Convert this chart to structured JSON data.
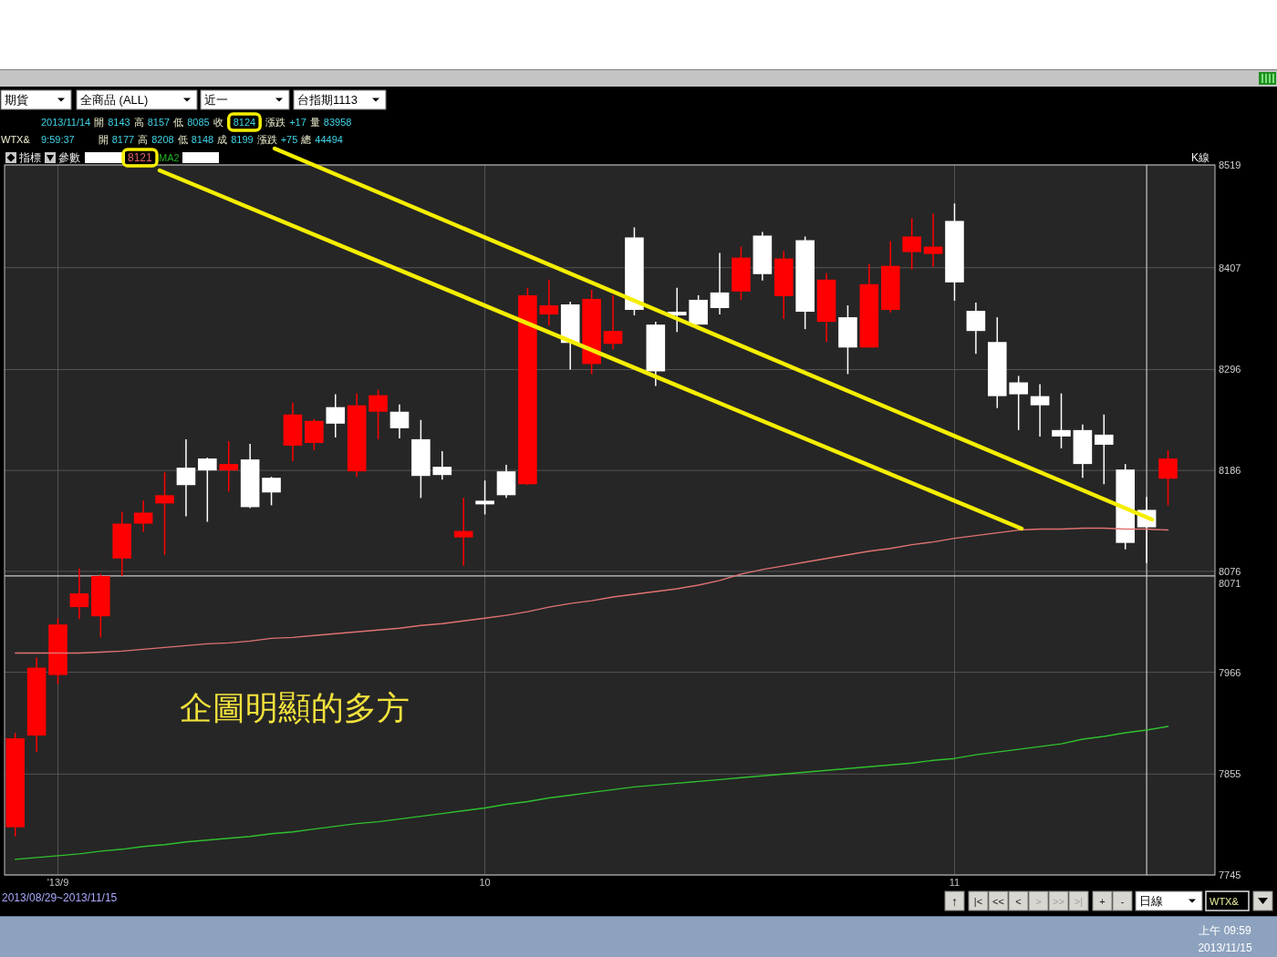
{
  "chart_data": {
    "type": "candlestick",
    "categories": [
      null,
      null,
      "'13/9",
      null,
      null,
      null,
      null,
      null,
      null,
      null,
      null,
      null,
      null,
      null,
      null,
      null,
      null,
      null,
      null,
      null,
      null,
      null,
      "10",
      null,
      null,
      null,
      null,
      null,
      null,
      null,
      null,
      null,
      null,
      null,
      null,
      null,
      null,
      null,
      null,
      null,
      null,
      null,
      null,
      null,
      "11",
      null,
      null,
      null,
      null,
      null,
      null,
      null,
      null,
      null,
      null
    ],
    "ohlc": [
      [
        7797,
        7900,
        7787,
        7894
      ],
      [
        7897,
        7982,
        7879,
        7971
      ],
      [
        7963,
        8025,
        7953,
        8018
      ],
      [
        8037,
        8079,
        8024,
        8052
      ],
      [
        8027,
        8073,
        8004,
        8071
      ],
      [
        8090,
        8141,
        8071,
        8128
      ],
      [
        8128,
        8153,
        8119,
        8140
      ],
      [
        8150,
        8184,
        8094,
        8159
      ],
      [
        8189,
        8220,
        8136,
        8170
      ],
      [
        8199,
        8200,
        8130,
        8186
      ],
      [
        8186,
        8218,
        8163,
        8193
      ],
      [
        8198,
        8215,
        8145,
        8146
      ],
      [
        8178,
        8179,
        8148,
        8162
      ],
      [
        8213,
        8260,
        8196,
        8247
      ],
      [
        8216,
        8242,
        8208,
        8240
      ],
      [
        8255,
        8269,
        8222,
        8237
      ],
      [
        8185,
        8270,
        8179,
        8257
      ],
      [
        8250,
        8274,
        8220,
        8268
      ],
      [
        8250,
        8258,
        8221,
        8232
      ],
      [
        8220,
        8241,
        8156,
        8180
      ],
      [
        8190,
        8207,
        8176,
        8181
      ],
      [
        8113,
        8156,
        8082,
        8120
      ],
      [
        8153,
        8175,
        8138,
        8149
      ],
      [
        8185,
        8192,
        8156,
        8159
      ],
      [
        8171,
        8385,
        8170,
        8377
      ],
      [
        8356,
        8394,
        8344,
        8366
      ],
      [
        8367,
        8370,
        8296,
        8325
      ],
      [
        8302,
        8383,
        8291,
        8373
      ],
      [
        8324,
        8377,
        8318,
        8338
      ],
      [
        8440,
        8451,
        8355,
        8361
      ],
      [
        8345,
        8348,
        8278,
        8294
      ],
      [
        8359,
        8385,
        8337,
        8355
      ],
      [
        8372,
        8377,
        8345,
        8345
      ],
      [
        8380,
        8423,
        8356,
        8363
      ],
      [
        8381,
        8430,
        8372,
        8418
      ],
      [
        8442,
        8446,
        8393,
        8400
      ],
      [
        8376,
        8425,
        8351,
        8417
      ],
      [
        8437,
        8441,
        8340,
        8359
      ],
      [
        8348,
        8401,
        8326,
        8394
      ],
      [
        8353,
        8366,
        8291,
        8320
      ],
      [
        8320,
        8411,
        8320,
        8389
      ],
      [
        8361,
        8436,
        8358,
        8409
      ],
      [
        8424,
        8461,
        8405,
        8441
      ],
      [
        8422,
        8466,
        8408,
        8430
      ],
      [
        8458,
        8477,
        8371,
        8391
      ],
      [
        8360,
        8369,
        8313,
        8338
      ],
      [
        8326,
        8353,
        8254,
        8267
      ],
      [
        8282,
        8289,
        8230,
        8269
      ],
      [
        8267,
        8280,
        8223,
        8257
      ],
      [
        8230,
        8270,
        8210,
        8223
      ],
      [
        8230,
        8236,
        8178,
        8193
      ],
      [
        8225,
        8247,
        8171,
        8214
      ],
      [
        8187,
        8193,
        8100,
        8107
      ],
      [
        8143,
        8157,
        8085,
        8124
      ],
      [
        8177,
        8208,
        8148,
        8199
      ]
    ],
    "colors": [
      "#ff0000",
      "#ff0000",
      "#ff0000",
      "#ff0000",
      "#ff0000",
      "#ff0000",
      "#ff0000",
      "#ff0000",
      "#ffffff",
      "#ffffff",
      "#ff0000",
      "#ffffff",
      "#ffffff",
      "#ff0000",
      "#ff0000",
      "#ffffff",
      "#ff0000",
      "#ff0000",
      "#ffffff",
      "#ffffff",
      "#ffffff",
      "#ff0000",
      "#ffffff",
      "#ffffff",
      "#ff0000",
      "#ff0000",
      "#ffffff",
      "#ff0000",
      "#ff0000",
      "#ffffff",
      "#ffffff",
      "#ffffff",
      "#ffffff",
      "#ffffff",
      "#ff0000",
      "#ffffff",
      "#ff0000",
      "#ffffff",
      "#ff0000",
      "#ffffff",
      "#ff0000",
      "#ff0000",
      "#ff0000",
      "#ff0000",
      "#ffffff",
      "#ffffff",
      "#ffffff",
      "#ffffff",
      "#ffffff",
      "#ffffff",
      "#ffffff",
      "#ffffff",
      "#ffffff",
      "#ffffff",
      "#ff0000"
    ],
    "series": [
      {
        "type": "line",
        "color": "#e07272",
        "values": [
          7987,
          7987,
          7987,
          7987,
          7988,
          7989,
          7991,
          7993,
          7995,
          7997,
          7998,
          8000,
          8003,
          8004,
          8006,
          8008,
          8010,
          8012,
          8014,
          8017,
          8019,
          8022,
          8025,
          8028,
          8032,
          8037,
          8041,
          8044,
          8048,
          8051,
          8054,
          8057,
          8061,
          8066,
          8073,
          8078,
          8082,
          8086,
          8090,
          8094,
          8098,
          8101,
          8105,
          8108,
          8112,
          8115,
          8118,
          8121,
          8122,
          8122,
          8123,
          8123,
          8122,
          8122,
          8121
        ]
      },
      {
        "type": "line",
        "color": "#2fc02f",
        "values": [
          7762,
          7764,
          7766,
          7768,
          7771,
          7773,
          7776,
          7778,
          7781,
          7783,
          7785,
          7787,
          7790,
          7792,
          7795,
          7798,
          7801,
          7803,
          7806,
          7809,
          7812,
          7815,
          7818,
          7822,
          7825,
          7829,
          7832,
          7835,
          7838,
          7841,
          7843,
          7845,
          7847,
          7849,
          7851,
          7853,
          7855,
          7857,
          7859,
          7861,
          7863,
          7865,
          7867,
          7870,
          7872,
          7876,
          7879,
          7882,
          7885,
          7888,
          7893,
          7896,
          7900,
          7903,
          7907
        ]
      }
    ],
    "ylim": [
      7745,
      8519
    ],
    "yticks": [
      8519,
      8407,
      8296,
      8186,
      8076,
      7966,
      7855,
      7745
    ],
    "grid": true,
    "ref_lines": [
      {
        "axis": "y",
        "value": 8071,
        "label": "8071",
        "color": "#c8c8c8"
      }
    ],
    "annotations": [
      "期貨",
      "全商品 (ALL)",
      "近一",
      "台指期1113",
      "2013/11/14 開 8143 高 8157 低 8085 收 8124 漲跌 +17 量 83958",
      "WTX&",
      "9:59:37 開 8177 高 8208 低 8148 成 8199 漲跌 +75 總 44494",
      "指標",
      "參數",
      "8121",
      "MA2",
      "K線",
      "企圖明顯的多方",
      "2013/08/29~2013/11/15",
      "↑",
      "|<",
      "<<",
      "<",
      ">",
      ">>",
      ">|",
      "+",
      "-",
      "日線",
      "WTX&",
      "上午 09:59",
      "2013/11/15"
    ]
  }
}
